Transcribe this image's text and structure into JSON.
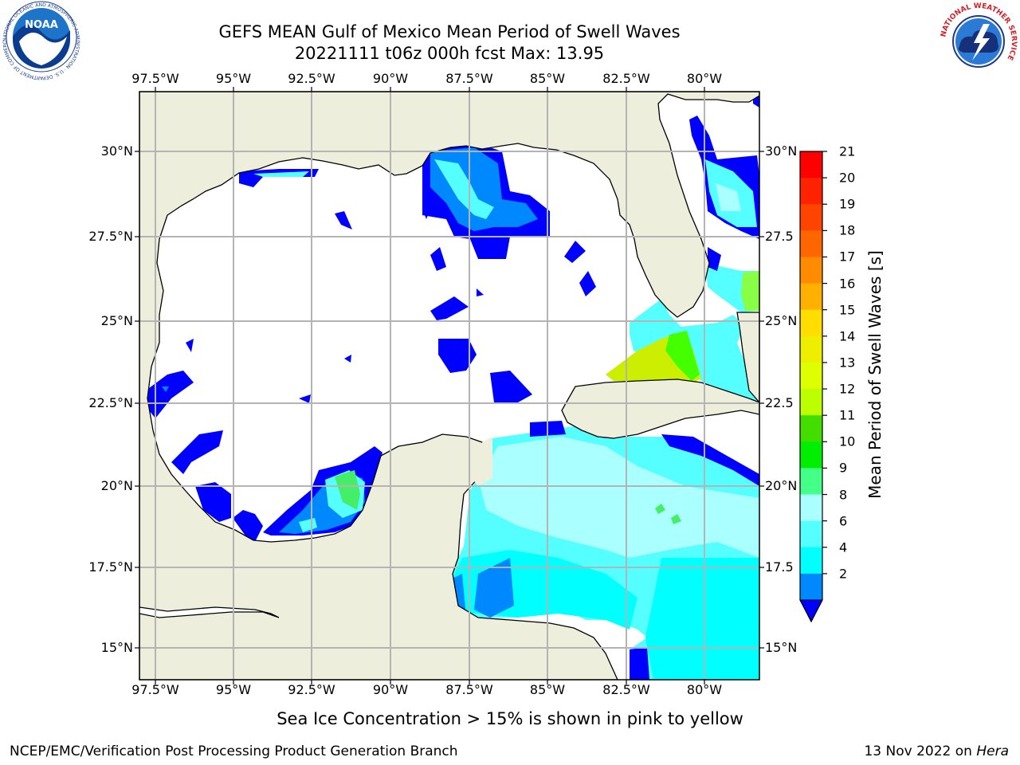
{
  "title": {
    "line1": "GEFS MEAN Gulf of Mexico Mean Period of Swell Waves",
    "line2": "20221111 t06z 000h fcst   Max: 13.95"
  },
  "map": {
    "lon_labels_top": [
      "97.5°W",
      "95°W",
      "92.5°W",
      "90°W",
      "87.5°W",
      "85°W",
      "82.5°W",
      "80°W"
    ],
    "lon_labels_bottom": [
      "97.5°W",
      "95°W",
      "92.5°W",
      "90°W",
      "87.5°W",
      "85°W",
      "82.5°W",
      "80°W"
    ],
    "lat_labels_left": [
      "30°N",
      "27.5°N",
      "25°N",
      "22.5°N",
      "20°N",
      "17.5°N",
      "15°N"
    ],
    "lat_labels_right": [
      "30°N",
      "27.5",
      "25°N",
      "22.5",
      "20°N",
      "17.5",
      "15°N"
    ],
    "colors": {
      "land": "#eeeedd",
      "ocean": "#ffffff",
      "grid": "#b4b4b4",
      "coast": "#000000"
    }
  },
  "colorbar": {
    "title": "Mean Period of Swell Waves [s]",
    "ticks": [
      "21",
      "20",
      "19",
      "18",
      "17",
      "16",
      "15",
      "14",
      "13",
      "12",
      "11",
      "10",
      "9",
      "8",
      "6",
      "4",
      "2"
    ],
    "colors": [
      "#ff0000",
      "#ff2200",
      "#ff4400",
      "#ff6600",
      "#ff8c00",
      "#ffb000",
      "#ffdd00",
      "#eeee00",
      "#ddff00",
      "#bbff00",
      "#44dd00",
      "#00ee00",
      "#44ff88",
      "#aaffff",
      "#55ffff",
      "#00ffff",
      "#0088ff"
    ],
    "under_color": "#0000ff"
  },
  "footnote": "Sea Ice Concentration > 15% is shown in pink to yellow",
  "footer": {
    "left": "NCEP/EMC/Verification Post Processing Product Generation Branch",
    "right_date": "13 Nov 2022 on ",
    "right_host": "Hera"
  },
  "logos": {
    "noaa_text": "NOAA",
    "noaa_ring": "NATIONAL OCEANIC AND ATMOSPHERIC ADMINISTRATION · U.S. DEPARTMENT OF COMMERCE",
    "nws_ring": "NATIONAL WEATHER SERVICE"
  }
}
